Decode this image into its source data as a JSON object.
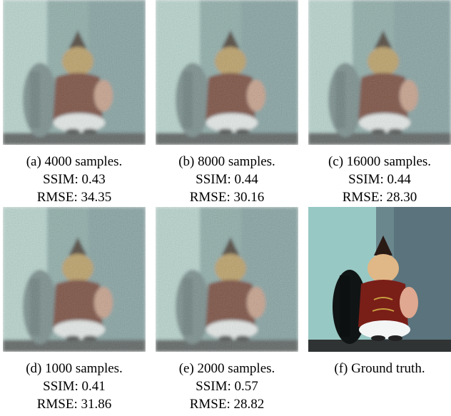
{
  "figure": {
    "panels": [
      {
        "caption": "(a) 4000 samples.",
        "ssim": "SSIM: 0.43",
        "rmse": "RMSE: 34.35"
      },
      {
        "caption": "(b) 8000 samples.",
        "ssim": "SSIM: 0.44",
        "rmse": "RMSE: 30.16"
      },
      {
        "caption": "(c) 16000 samples.",
        "ssim": "SSIM: 0.44",
        "rmse": "RMSE: 28.30"
      },
      {
        "caption": "(d) 1000 samples.",
        "ssim": "SSIM: 0.41",
        "rmse": "RMSE: 31.86"
      },
      {
        "caption": "(e) 2000 samples.",
        "ssim": "SSIM: 0.57",
        "rmse": "RMSE: 28.82"
      },
      {
        "caption": "(f) Ground truth."
      }
    ]
  }
}
